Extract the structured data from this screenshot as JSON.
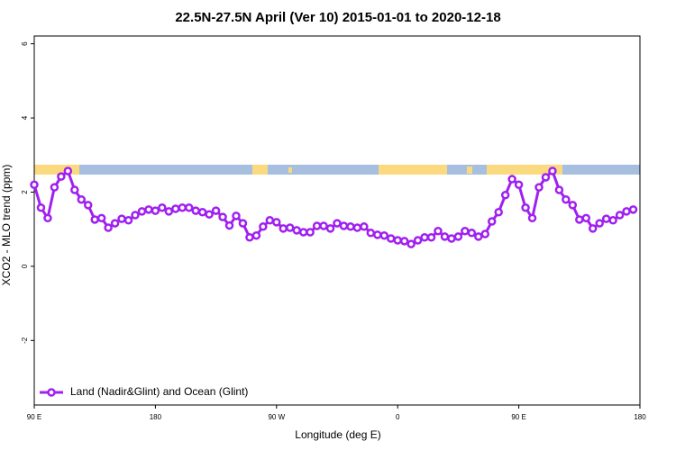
{
  "chart_data": {
    "type": "line",
    "title": "22.5N-27.5N April (Ver 10)   2015-01-01 to 2020-12-18",
    "x_label": "Longitude (deg E)",
    "y_label": "XCO2 - MLO trend (ppm)",
    "x": [
      90,
      95,
      100,
      105,
      110,
      115,
      120,
      125,
      130,
      135,
      140,
      145,
      150,
      155,
      160,
      165,
      170,
      175,
      180,
      185,
      190,
      195,
      200,
      205,
      210,
      215,
      220,
      225,
      230,
      235,
      240,
      245,
      250,
      255,
      260,
      265,
      270,
      275,
      280,
      285,
      290,
      295,
      300,
      305,
      310,
      315,
      320,
      325,
      330,
      335,
      340,
      345,
      350,
      355,
      360,
      365,
      370,
      375,
      380,
      385,
      390,
      395,
      400,
      405,
      410,
      415,
      420,
      425,
      430,
      435,
      440,
      445,
      450,
      455,
      460,
      465,
      470,
      475,
      480,
      485,
      490,
      495,
      500,
      505,
      510,
      515,
      520,
      525,
      530,
      535
    ],
    "series": [
      {
        "name": "Land (Nadir&Glint) and Ocean (Glint)",
        "color": "#a020f0",
        "values": [
          2.2,
          1.58,
          1.3,
          2.13,
          2.42,
          2.57,
          2.06,
          1.8,
          1.65,
          1.26,
          1.3,
          1.04,
          1.16,
          1.28,
          1.24,
          1.38,
          1.48,
          1.53,
          1.5,
          1.58,
          1.48,
          1.55,
          1.58,
          1.58,
          1.5,
          1.46,
          1.4,
          1.5,
          1.33,
          1.1,
          1.36,
          1.16,
          0.78,
          0.83,
          1.07,
          1.24,
          1.19,
          1.02,
          1.04,
          0.97,
          0.92,
          0.92,
          1.09,
          1.09,
          1.02,
          1.16,
          1.09,
          1.07,
          1.04,
          1.07,
          0.9,
          0.85,
          0.83,
          0.75,
          0.7,
          0.68,
          0.6,
          0.7,
          0.78,
          0.78,
          0.95,
          0.8,
          0.75,
          0.8,
          0.95,
          0.9,
          0.8,
          0.87,
          1.21,
          1.46,
          1.92,
          2.35,
          2.2,
          1.58,
          1.3,
          2.13,
          2.4,
          2.57,
          2.06,
          1.8,
          1.65,
          1.26,
          1.3,
          1.02,
          1.16,
          1.28,
          1.24,
          1.38,
          1.48,
          1.53
        ]
      }
    ],
    "xlim": [
      90,
      540
    ],
    "xticks": [
      {
        "value": 90,
        "label": "90 E"
      },
      180,
      {
        "value": 270,
        "label": "90 W"
      },
      {
        "value": 360,
        "label": "0"
      },
      {
        "value": 450,
        "label": "90 E"
      },
      {
        "value": 540,
        "label": "180"
      }
    ],
    "ylim": [
      -3.74,
      6.21
    ],
    "yticks": [
      -2,
      0,
      2,
      4,
      6
    ],
    "legend": "bottom-left"
  }
}
